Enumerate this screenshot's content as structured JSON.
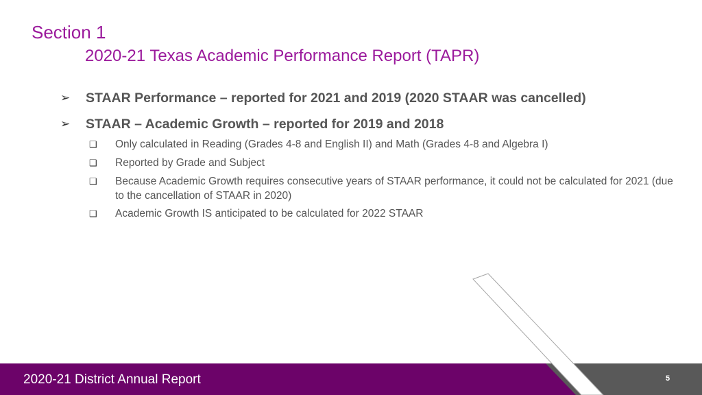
{
  "slide": {
    "section": "Section 1",
    "subtitle": "2020-21 Texas Academic Performance Report (TAPR)",
    "bullets": [
      {
        "marker": "➢",
        "text": "STAAR Performance – reported for 2021 and 2019 (2020 STAAR was cancelled)"
      },
      {
        "marker": "➢",
        "text": "STAAR – Academic Growth – reported for 2019 and 2018"
      }
    ],
    "subbullets": [
      {
        "marker": "❑",
        "text": "Only calculated in Reading (Grades 4-8 and English II) and Math (Grades 4-8 and Algebra I)"
      },
      {
        "marker": "❑",
        "text": "Reported by Grade and Subject"
      },
      {
        "marker": "❑",
        "text": "Because Academic Growth requires consecutive years of STAAR performance, it could not be calculated for 2021 (due to the cancellation of STAAR in 2020)"
      },
      {
        "marker": "❑",
        "text": "Academic Growth IS anticipated to be calculated for 2022 STAAR"
      }
    ],
    "footer": "2020-21 District Annual Report",
    "page_number": "5"
  },
  "colors": {
    "title": "#9b1a9c",
    "footer_bar": "#6c0369",
    "footer_gray": "#595959"
  }
}
